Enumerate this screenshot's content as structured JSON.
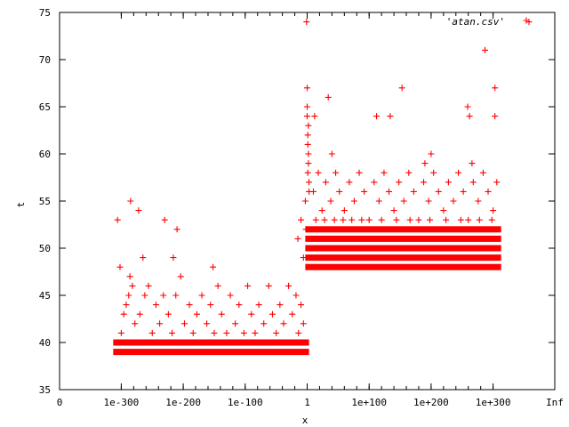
{
  "chart_data": {
    "type": "scatter",
    "xlabel": "x",
    "ylabel": "t",
    "x_tick_labels": [
      "0",
      "1e-300",
      "1e-200",
      "1e-100",
      "1",
      "1e+100",
      "1e+200",
      "1e+300",
      "Inf"
    ],
    "x_log10_positions": [
      null,
      -300,
      -200,
      -100,
      0,
      100,
      200,
      300,
      null
    ],
    "ylim": [
      35,
      75
    ],
    "y_ticks": [
      35,
      40,
      45,
      50,
      55,
      60,
      65,
      70,
      75
    ],
    "grid": false,
    "legend_placement": "top-right",
    "marker": "plus",
    "series": [
      {
        "name": "'atan.csv'",
        "color": "#ff0000",
        "dense_bands": [
          {
            "log10_x_range": [
              -308,
              -2
            ],
            "t": 39
          },
          {
            "log10_x_range": [
              -308,
              -2
            ],
            "t": 40
          },
          {
            "log10_x_range": [
              2,
              308
            ],
            "t": 48
          },
          {
            "log10_x_range": [
              2,
              308
            ],
            "t": 49
          },
          {
            "log10_x_range": [
              2,
              308
            ],
            "t": 50
          },
          {
            "log10_x_range": [
              2,
              308
            ],
            "t": 51
          },
          {
            "log10_x_range": [
              2,
              308
            ],
            "t": 52
          }
        ],
        "points": [
          {
            "log10_x": -306,
            "t": 53
          },
          {
            "log10_x": -302,
            "t": 48
          },
          {
            "log10_x": -285,
            "t": 55
          },
          {
            "log10_x": -272,
            "t": 54
          },
          {
            "log10_x": -265,
            "t": 49
          },
          {
            "log10_x": -230,
            "t": 53
          },
          {
            "log10_x": -216,
            "t": 49
          },
          {
            "log10_x": -210,
            "t": 52
          },
          {
            "log10_x": -152,
            "t": 48
          },
          {
            "log10_x": -300,
            "t": 41
          },
          {
            "log10_x": -296,
            "t": 43
          },
          {
            "log10_x": -292,
            "t": 44
          },
          {
            "log10_x": -288,
            "t": 45
          },
          {
            "log10_x": -286,
            "t": 47
          },
          {
            "log10_x": -282,
            "t": 46
          },
          {
            "log10_x": -278,
            "t": 42
          },
          {
            "log10_x": -270,
            "t": 43
          },
          {
            "log10_x": -262,
            "t": 45
          },
          {
            "log10_x": -256,
            "t": 46
          },
          {
            "log10_x": -250,
            "t": 41
          },
          {
            "log10_x": -244,
            "t": 44
          },
          {
            "log10_x": -238,
            "t": 42
          },
          {
            "log10_x": -232,
            "t": 45
          },
          {
            "log10_x": -224,
            "t": 43
          },
          {
            "log10_x": -218,
            "t": 41
          },
          {
            "log10_x": -212,
            "t": 45
          },
          {
            "log10_x": -204,
            "t": 47
          },
          {
            "log10_x": -198,
            "t": 42
          },
          {
            "log10_x": -190,
            "t": 44
          },
          {
            "log10_x": -184,
            "t": 41
          },
          {
            "log10_x": -178,
            "t": 43
          },
          {
            "log10_x": -170,
            "t": 45
          },
          {
            "log10_x": -162,
            "t": 42
          },
          {
            "log10_x": -156,
            "t": 44
          },
          {
            "log10_x": -150,
            "t": 41
          },
          {
            "log10_x": -144,
            "t": 46
          },
          {
            "log10_x": -138,
            "t": 43
          },
          {
            "log10_x": -130,
            "t": 41
          },
          {
            "log10_x": -124,
            "t": 45
          },
          {
            "log10_x": -116,
            "t": 42
          },
          {
            "log10_x": -110,
            "t": 44
          },
          {
            "log10_x": -102,
            "t": 41
          },
          {
            "log10_x": -96,
            "t": 46
          },
          {
            "log10_x": -90,
            "t": 43
          },
          {
            "log10_x": -84,
            "t": 41
          },
          {
            "log10_x": -78,
            "t": 44
          },
          {
            "log10_x": -70,
            "t": 42
          },
          {
            "log10_x": -62,
            "t": 46
          },
          {
            "log10_x": -56,
            "t": 43
          },
          {
            "log10_x": -50,
            "t": 41
          },
          {
            "log10_x": -44,
            "t": 44
          },
          {
            "log10_x": -38,
            "t": 42
          },
          {
            "log10_x": -30,
            "t": 46
          },
          {
            "log10_x": -24,
            "t": 43
          },
          {
            "log10_x": -18,
            "t": 45
          },
          {
            "log10_x": -14,
            "t": 41
          },
          {
            "log10_x": -10,
            "t": 44
          },
          {
            "log10_x": -6,
            "t": 42
          },
          {
            "log10_x": -15,
            "t": 51
          },
          {
            "log10_x": -10,
            "t": 53
          },
          {
            "log10_x": -6,
            "t": 49
          },
          {
            "log10_x": -3,
            "t": 55
          },
          {
            "log10_x": -2,
            "t": 52
          },
          {
            "log10_x": -1,
            "t": 74
          },
          {
            "log10_x": 0,
            "t": 67
          },
          {
            "log10_x": 0,
            "t": 65
          },
          {
            "log10_x": 0,
            "t": 64
          },
          {
            "log10_x": 2,
            "t": 63
          },
          {
            "log10_x": 1,
            "t": 62
          },
          {
            "log10_x": 1,
            "t": 61
          },
          {
            "log10_x": 2,
            "t": 60
          },
          {
            "log10_x": 2,
            "t": 59
          },
          {
            "log10_x": 1,
            "t": 58
          },
          {
            "log10_x": 3,
            "t": 57
          },
          {
            "log10_x": 3,
            "t": 56
          },
          {
            "log10_x": 12,
            "t": 64
          },
          {
            "log10_x": 34,
            "t": 66
          },
          {
            "log10_x": 40,
            "t": 60
          },
          {
            "log10_x": 112,
            "t": 64
          },
          {
            "log10_x": 134,
            "t": 64
          },
          {
            "log10_x": 153,
            "t": 67
          },
          {
            "log10_x": 190,
            "t": 59
          },
          {
            "log10_x": 200,
            "t": 60
          },
          {
            "log10_x": 259,
            "t": 65
          },
          {
            "log10_x": 262,
            "t": 64
          },
          {
            "log10_x": 266,
            "t": 59
          },
          {
            "log10_x": 287,
            "t": 71
          },
          {
            "log10_x": 303,
            "t": 67
          },
          {
            "log10_x": 303,
            "t": 64
          },
          {
            "log10_x": 358,
            "t": 74
          },
          {
            "log10_x": 10,
            "t": 56
          },
          {
            "log10_x": 18,
            "t": 58
          },
          {
            "log10_x": 24,
            "t": 54
          },
          {
            "log10_x": 30,
            "t": 57
          },
          {
            "log10_x": 38,
            "t": 55
          },
          {
            "log10_x": 46,
            "t": 58
          },
          {
            "log10_x": 52,
            "t": 56
          },
          {
            "log10_x": 60,
            "t": 54
          },
          {
            "log10_x": 68,
            "t": 57
          },
          {
            "log10_x": 76,
            "t": 55
          },
          {
            "log10_x": 84,
            "t": 58
          },
          {
            "log10_x": 92,
            "t": 56
          },
          {
            "log10_x": 100,
            "t": 53
          },
          {
            "log10_x": 108,
            "t": 57
          },
          {
            "log10_x": 116,
            "t": 55
          },
          {
            "log10_x": 124,
            "t": 58
          },
          {
            "log10_x": 132,
            "t": 56
          },
          {
            "log10_x": 140,
            "t": 54
          },
          {
            "log10_x": 148,
            "t": 57
          },
          {
            "log10_x": 156,
            "t": 55
          },
          {
            "log10_x": 164,
            "t": 58
          },
          {
            "log10_x": 172,
            "t": 56
          },
          {
            "log10_x": 180,
            "t": 53
          },
          {
            "log10_x": 188,
            "t": 57
          },
          {
            "log10_x": 196,
            "t": 55
          },
          {
            "log10_x": 204,
            "t": 58
          },
          {
            "log10_x": 212,
            "t": 56
          },
          {
            "log10_x": 220,
            "t": 54
          },
          {
            "log10_x": 228,
            "t": 57
          },
          {
            "log10_x": 236,
            "t": 55
          },
          {
            "log10_x": 244,
            "t": 58
          },
          {
            "log10_x": 252,
            "t": 56
          },
          {
            "log10_x": 260,
            "t": 53
          },
          {
            "log10_x": 268,
            "t": 57
          },
          {
            "log10_x": 276,
            "t": 55
          },
          {
            "log10_x": 284,
            "t": 58
          },
          {
            "log10_x": 292,
            "t": 56
          },
          {
            "log10_x": 300,
            "t": 54
          },
          {
            "log10_x": 306,
            "t": 57
          },
          {
            "log10_x": 14,
            "t": 53
          },
          {
            "log10_x": 28,
            "t": 53
          },
          {
            "log10_x": 44,
            "t": 53
          },
          {
            "log10_x": 58,
            "t": 53
          },
          {
            "log10_x": 72,
            "t": 53
          },
          {
            "log10_x": 88,
            "t": 53
          },
          {
            "log10_x": 120,
            "t": 53
          },
          {
            "log10_x": 144,
            "t": 53
          },
          {
            "log10_x": 166,
            "t": 53
          },
          {
            "log10_x": 198,
            "t": 53
          },
          {
            "log10_x": 224,
            "t": 53
          },
          {
            "log10_x": 248,
            "t": 53
          },
          {
            "log10_x": 278,
            "t": 53
          },
          {
            "log10_x": 298,
            "t": 53
          }
        ]
      }
    ]
  }
}
